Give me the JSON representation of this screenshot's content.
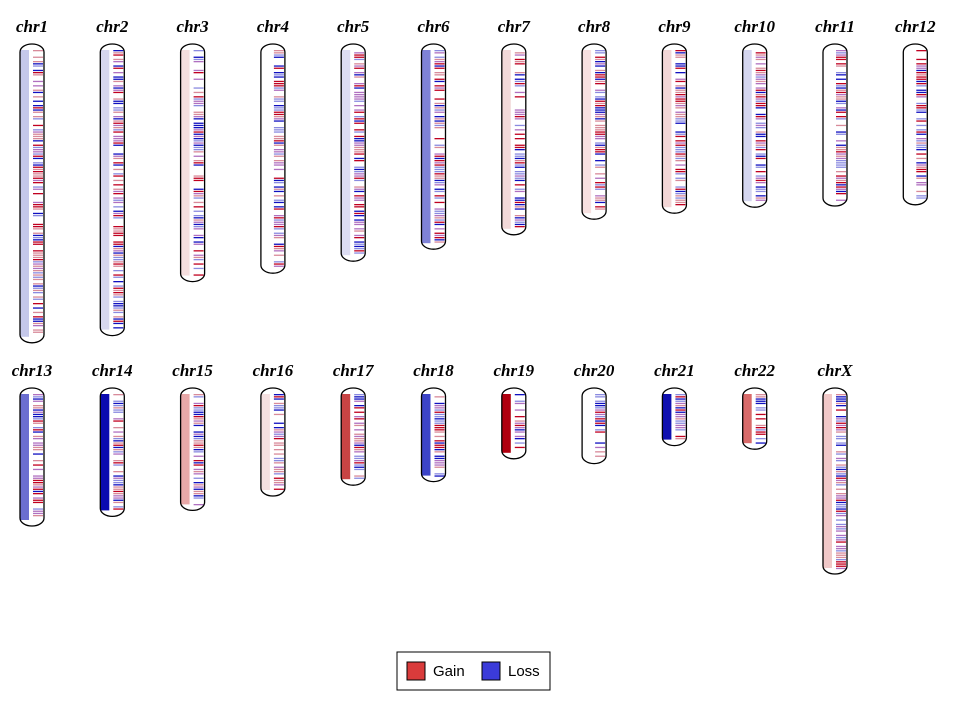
{
  "chart_data": {
    "type": "ideogram",
    "chromosomes": [
      "chr1",
      "chr2",
      "chr3",
      "chr4",
      "chr5",
      "chr6",
      "chr7",
      "chr8",
      "chr9",
      "chr10",
      "chr11",
      "chr12",
      "chr13",
      "chr14",
      "chr15",
      "chr16",
      "chr17",
      "chr18",
      "chr19",
      "chr20",
      "chr21",
      "chr22",
      "chrX"
    ],
    "lengths": [
      249,
      243,
      198,
      191,
      181,
      171,
      159,
      146,
      141,
      136,
      135,
      134,
      115,
      107,
      102,
      90,
      81,
      78,
      59,
      63,
      48,
      51,
      155
    ],
    "colors": [
      "#c5c8ea",
      "#d6d6ee",
      "#f5dede",
      "#ffffff",
      "#dcdcf2",
      "#7f82d6",
      "#f2d8d8",
      "#f7e0e0",
      "#f2d6d6",
      "#d4d6f0",
      "#ffffff",
      "#ffffff",
      "#6b6ed0",
      "#0a0ab0",
      "#e8a8a8",
      "#f5e0e0",
      "#c84444",
      "#3c44c8",
      "#b00010",
      "#ffffff",
      "#1010b0",
      "#d86a6a",
      "#f0c8c8"
    ],
    "series": [
      {
        "name": "Gain",
        "color": "#d93b3b"
      },
      {
        "name": "Loss",
        "color": "#3b3bd9"
      }
    ]
  }
}
